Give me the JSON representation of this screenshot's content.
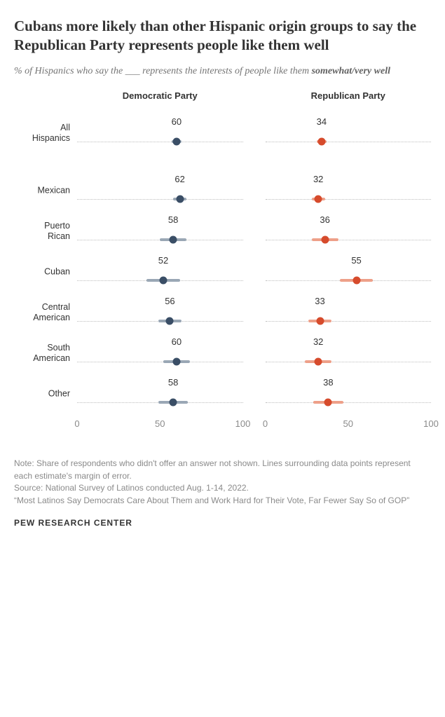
{
  "title": "Cubans more likely than other Hispanic origin groups to say the Republican Party represents people like them well",
  "subtitle_prefix": "% of Hispanics who say the ___ represents the interests of people like them ",
  "subtitle_bold": "somewhat/very well",
  "panels": [
    {
      "key": "dem",
      "label": "Democratic Party",
      "dot_color": "#3a4e66",
      "moe_color": "#9aa7b5"
    },
    {
      "key": "rep",
      "label": "Republican Party",
      "dot_color": "#d64b2c",
      "moe_color": "#eea089"
    }
  ],
  "xlim": [
    0,
    100
  ],
  "ticks": [
    0,
    50,
    100
  ],
  "groups": [
    {
      "label": "All Hispanics",
      "gap_after": true,
      "dem": {
        "value": 60,
        "moe": 3
      },
      "rep": {
        "value": 34,
        "moe": 3
      }
    },
    {
      "label": "Mexican",
      "dem": {
        "value": 62,
        "moe": 4
      },
      "rep": {
        "value": 32,
        "moe": 4
      }
    },
    {
      "label": "Puerto Rican",
      "dem": {
        "value": 58,
        "moe": 8
      },
      "rep": {
        "value": 36,
        "moe": 8
      }
    },
    {
      "label": "Cuban",
      "dem": {
        "value": 52,
        "moe": 10
      },
      "rep": {
        "value": 55,
        "moe": 10
      }
    },
    {
      "label": "Central American",
      "dem": {
        "value": 56,
        "moe": 7
      },
      "rep": {
        "value": 33,
        "moe": 7
      }
    },
    {
      "label": "South American",
      "dem": {
        "value": 60,
        "moe": 8
      },
      "rep": {
        "value": 32,
        "moe": 8
      }
    },
    {
      "label": "Other",
      "dem": {
        "value": 58,
        "moe": 9
      },
      "rep": {
        "value": 38,
        "moe": 9
      }
    }
  ],
  "note": "Note: Share of respondents who didn't offer an answer not shown. Lines surrounding data points represent each estimate's margin of error.",
  "source": "Source: National Survey of Latinos conducted Aug. 1-14, 2022.",
  "report": "“Most Latinos Say Democrats Care About Them and Work Hard for Their Vote, Far Fewer Say So of GOP”",
  "footer": "PEW RESEARCH CENTER",
  "style": {
    "background_color": "#ffffff",
    "baseline_color": "#bdbdbd",
    "label_fontsize": 12.5,
    "value_fontsize": 13,
    "dot_size": 11
  }
}
